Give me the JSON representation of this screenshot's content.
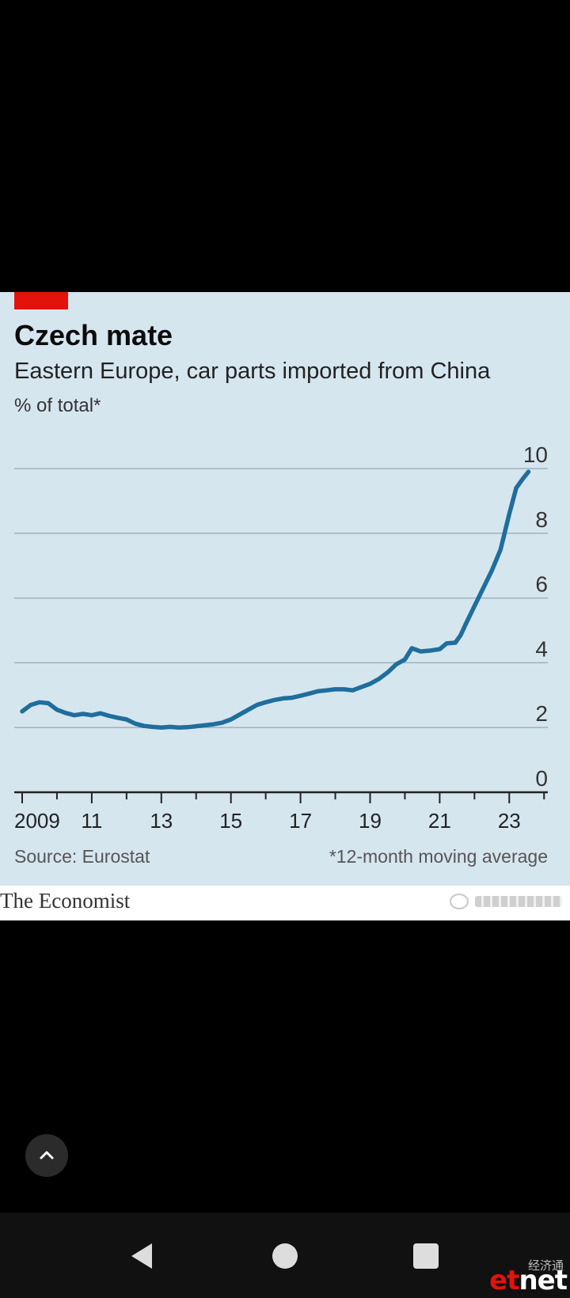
{
  "chart_data": {
    "type": "line",
    "title": "Czech mate",
    "subtitle": "Eastern Europe, car parts imported from China",
    "ylabel": "% of total*",
    "source": "Source: Eurostat",
    "note": "*12-month moving average",
    "ylim": [
      0,
      10
    ],
    "yticks": [
      "0",
      "2",
      "4",
      "6",
      "8",
      "10"
    ],
    "xlim": [
      2009,
      2024.7
    ],
    "xticks": [
      {
        "label": "2009",
        "value": 2009
      },
      {
        "label": "11",
        "value": 2011
      },
      {
        "label": "13",
        "value": 2013
      },
      {
        "label": "15",
        "value": 2015
      },
      {
        "label": "17",
        "value": 2017
      },
      {
        "label": "19",
        "value": 2019
      },
      {
        "label": "21",
        "value": 2021
      },
      {
        "label": "23",
        "value": 2023
      }
    ],
    "grid": true,
    "line_color": "#1f6e9c",
    "series": [
      {
        "points": [
          [
            2009.0,
            2.5
          ],
          [
            2009.25,
            2.7
          ],
          [
            2009.5,
            2.78
          ],
          [
            2009.75,
            2.75
          ],
          [
            2010.0,
            2.55
          ],
          [
            2010.25,
            2.45
          ],
          [
            2010.5,
            2.38
          ],
          [
            2010.75,
            2.42
          ],
          [
            2011.0,
            2.38
          ],
          [
            2011.25,
            2.44
          ],
          [
            2011.5,
            2.36
          ],
          [
            2011.75,
            2.3
          ],
          [
            2012.0,
            2.25
          ],
          [
            2012.25,
            2.12
          ],
          [
            2012.5,
            2.05
          ],
          [
            2012.75,
            2.02
          ],
          [
            2013.0,
            2.0
          ],
          [
            2013.25,
            2.02
          ],
          [
            2013.5,
            2.0
          ],
          [
            2013.75,
            2.01
          ],
          [
            2014.0,
            2.04
          ],
          [
            2014.25,
            2.07
          ],
          [
            2014.5,
            2.1
          ],
          [
            2014.75,
            2.15
          ],
          [
            2015.0,
            2.25
          ],
          [
            2015.25,
            2.4
          ],
          [
            2015.5,
            2.55
          ],
          [
            2015.75,
            2.7
          ],
          [
            2016.0,
            2.78
          ],
          [
            2016.25,
            2.85
          ],
          [
            2016.5,
            2.9
          ],
          [
            2016.75,
            2.92
          ],
          [
            2017.0,
            2.98
          ],
          [
            2017.25,
            3.05
          ],
          [
            2017.5,
            3.12
          ],
          [
            2017.75,
            3.15
          ],
          [
            2018.0,
            3.18
          ],
          [
            2018.25,
            3.18
          ],
          [
            2018.5,
            3.15
          ],
          [
            2018.75,
            3.25
          ],
          [
            2019.0,
            3.35
          ],
          [
            2019.25,
            3.5
          ],
          [
            2019.5,
            3.7
          ],
          [
            2019.75,
            3.95
          ],
          [
            2020.0,
            4.1
          ],
          [
            2020.2,
            4.45
          ],
          [
            2020.45,
            4.35
          ],
          [
            2020.75,
            4.38
          ],
          [
            2021.0,
            4.42
          ],
          [
            2021.2,
            4.6
          ],
          [
            2021.45,
            4.62
          ],
          [
            2021.6,
            4.85
          ],
          [
            2021.75,
            5.2
          ],
          [
            2022.0,
            5.75
          ],
          [
            2022.25,
            6.3
          ],
          [
            2022.5,
            6.85
          ],
          [
            2022.75,
            7.5
          ],
          [
            2023.0,
            8.6
          ],
          [
            2023.2,
            9.4
          ],
          [
            2023.4,
            9.7
          ],
          [
            2023.55,
            9.9
          ]
        ]
      }
    ]
  },
  "branding": {
    "logo": "The Economist",
    "accent": "#e3120b"
  },
  "ui": {
    "scroll_top_icon": "chevron-up-icon",
    "nav_back_icon": "back-triangle-icon",
    "nav_home_icon": "home-circle-icon",
    "nav_recents_icon": "recents-square-icon",
    "corner_badge": {
      "cn": "经济通",
      "et": "et",
      "net": "net"
    }
  }
}
